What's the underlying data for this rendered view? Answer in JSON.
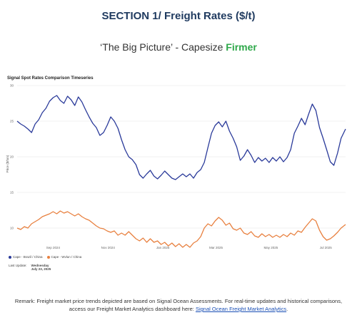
{
  "header": {
    "title_prefix": "SECTION 1/ ",
    "title_main": "Freight Rates ($/t)",
    "subtitle_main": "‘The Big Picture’ - Capesize ",
    "subtitle_status": "Firmer"
  },
  "legend": {
    "series1": "Cape - Brazil / China",
    "series2": "Cape - Wvlun / China"
  },
  "last_update": {
    "label": "Last Update:",
    "day": "Wednesday",
    "date": "July 23, 2025"
  },
  "remark": {
    "text": "Remark: Freight market price trends depicted are based on Signal Ocean Assessments. For real-time updates and historical comparisons, access our Freight Market Analytics dashboard here: ",
    "link": "Signal Ocean Freight Market Analytics",
    "end": "."
  },
  "colors": {
    "series1": "#2a3a9a",
    "series2": "#e8803f",
    "title": "#1f3a5f",
    "status": "#2ea84a"
  },
  "chart_data": {
    "type": "line",
    "title": "Signal Spot Rates Comparison Timeseries",
    "ylabel": "Price ($/ton)",
    "xlabel": "",
    "ylim": [
      8,
      30
    ],
    "yticks": [
      10,
      15,
      20,
      25,
      30
    ],
    "xlim": [
      "2024-07-23",
      "2025-07-23"
    ],
    "xticks": [
      {
        "date": "2024-09-01",
        "label": "Sep 2024"
      },
      {
        "date": "2024-11-01",
        "label": "Nov 2024"
      },
      {
        "date": "2025-01-01",
        "label": "Jan 2025"
      },
      {
        "date": "2025-03-01",
        "label": "Mar 2025"
      },
      {
        "date": "2025-05-01",
        "label": "May 2025"
      },
      {
        "date": "2025-07-01",
        "label": "Jul 2025"
      }
    ],
    "grid": true,
    "series": [
      {
        "name": "Cape - Brazil / China",
        "points": [
          [
            "2024-07-23",
            25.0
          ],
          [
            "2024-07-27",
            24.6
          ],
          [
            "2024-07-31",
            24.3
          ],
          [
            "2024-08-04",
            23.9
          ],
          [
            "2024-08-08",
            23.4
          ],
          [
            "2024-08-12",
            24.6
          ],
          [
            "2024-08-16",
            25.2
          ],
          [
            "2024-08-20",
            26.2
          ],
          [
            "2024-08-24",
            26.8
          ],
          [
            "2024-08-28",
            27.8
          ],
          [
            "2024-09-01",
            28.3
          ],
          [
            "2024-09-05",
            28.6
          ],
          [
            "2024-09-09",
            27.9
          ],
          [
            "2024-09-13",
            27.5
          ],
          [
            "2024-09-17",
            28.5
          ],
          [
            "2024-09-21",
            28.0
          ],
          [
            "2024-09-25",
            27.2
          ],
          [
            "2024-09-29",
            28.4
          ],
          [
            "2024-10-03",
            27.7
          ],
          [
            "2024-10-07",
            26.6
          ],
          [
            "2024-10-11",
            25.6
          ],
          [
            "2024-10-15",
            24.7
          ],
          [
            "2024-10-19",
            24.1
          ],
          [
            "2024-10-23",
            23.0
          ],
          [
            "2024-10-27",
            23.4
          ],
          [
            "2024-10-31",
            24.4
          ],
          [
            "2024-11-04",
            25.6
          ],
          [
            "2024-11-08",
            25.0
          ],
          [
            "2024-11-12",
            24.0
          ],
          [
            "2024-11-16",
            22.4
          ],
          [
            "2024-11-20",
            21.0
          ],
          [
            "2024-11-24",
            20.0
          ],
          [
            "2024-11-28",
            19.6
          ],
          [
            "2024-12-02",
            18.9
          ],
          [
            "2024-12-06",
            17.5
          ],
          [
            "2024-12-10",
            17.0
          ],
          [
            "2024-12-14",
            17.6
          ],
          [
            "2024-12-18",
            18.1
          ],
          [
            "2024-12-22",
            17.3
          ],
          [
            "2024-12-26",
            16.9
          ],
          [
            "2024-12-30",
            17.4
          ],
          [
            "2025-01-03",
            18.0
          ],
          [
            "2025-01-07",
            17.5
          ],
          [
            "2025-01-11",
            17.0
          ],
          [
            "2025-01-15",
            16.8
          ],
          [
            "2025-01-19",
            17.2
          ],
          [
            "2025-01-23",
            17.6
          ],
          [
            "2025-01-27",
            17.2
          ],
          [
            "2025-01-31",
            17.6
          ],
          [
            "2025-02-04",
            17.0
          ],
          [
            "2025-02-08",
            17.8
          ],
          [
            "2025-02-12",
            18.2
          ],
          [
            "2025-02-16",
            19.2
          ],
          [
            "2025-02-20",
            21.3
          ],
          [
            "2025-02-24",
            23.3
          ],
          [
            "2025-02-28",
            24.4
          ],
          [
            "2025-03-04",
            24.9
          ],
          [
            "2025-03-08",
            24.2
          ],
          [
            "2025-03-12",
            25.0
          ],
          [
            "2025-03-16",
            23.6
          ],
          [
            "2025-03-20",
            22.6
          ],
          [
            "2025-03-24",
            21.4
          ],
          [
            "2025-03-28",
            19.5
          ],
          [
            "2025-04-01",
            20.1
          ],
          [
            "2025-04-05",
            21.0
          ],
          [
            "2025-04-09",
            20.2
          ],
          [
            "2025-04-13",
            19.2
          ],
          [
            "2025-04-17",
            19.9
          ],
          [
            "2025-04-21",
            19.4
          ],
          [
            "2025-04-25",
            19.8
          ],
          [
            "2025-04-29",
            19.2
          ],
          [
            "2025-05-03",
            19.9
          ],
          [
            "2025-05-07",
            19.4
          ],
          [
            "2025-05-11",
            20.0
          ],
          [
            "2025-05-15",
            19.3
          ],
          [
            "2025-05-19",
            19.9
          ],
          [
            "2025-05-23",
            21.0
          ],
          [
            "2025-05-27",
            23.3
          ],
          [
            "2025-05-31",
            24.3
          ],
          [
            "2025-06-04",
            25.4
          ],
          [
            "2025-06-08",
            24.5
          ],
          [
            "2025-06-12",
            26.0
          ],
          [
            "2025-06-16",
            27.4
          ],
          [
            "2025-06-20",
            26.5
          ],
          [
            "2025-06-24",
            24.1
          ],
          [
            "2025-06-28",
            22.6
          ],
          [
            "2025-07-02",
            21.0
          ],
          [
            "2025-07-06",
            19.3
          ],
          [
            "2025-07-10",
            18.8
          ],
          [
            "2025-07-14",
            20.5
          ],
          [
            "2025-07-18",
            22.6
          ],
          [
            "2025-07-23",
            23.9
          ]
        ]
      },
      {
        "name": "Cape - Wvlun / China",
        "points": [
          [
            "2024-07-23",
            10.0
          ],
          [
            "2024-07-27",
            9.8
          ],
          [
            "2024-07-31",
            10.2
          ],
          [
            "2024-08-04",
            10.0
          ],
          [
            "2024-08-08",
            10.6
          ],
          [
            "2024-08-12",
            10.9
          ],
          [
            "2024-08-16",
            11.2
          ],
          [
            "2024-08-20",
            11.6
          ],
          [
            "2024-08-24",
            11.8
          ],
          [
            "2024-08-28",
            12.0
          ],
          [
            "2024-09-01",
            12.3
          ],
          [
            "2024-09-05",
            12.0
          ],
          [
            "2024-09-09",
            12.4
          ],
          [
            "2024-09-13",
            12.1
          ],
          [
            "2024-09-17",
            12.3
          ],
          [
            "2024-09-21",
            12.0
          ],
          [
            "2024-09-25",
            11.7
          ],
          [
            "2024-09-29",
            12.0
          ],
          [
            "2024-10-03",
            11.6
          ],
          [
            "2024-10-07",
            11.3
          ],
          [
            "2024-10-11",
            11.1
          ],
          [
            "2024-10-15",
            10.7
          ],
          [
            "2024-10-19",
            10.3
          ],
          [
            "2024-10-23",
            10.0
          ],
          [
            "2024-10-27",
            9.9
          ],
          [
            "2024-10-31",
            9.6
          ],
          [
            "2024-11-04",
            9.4
          ],
          [
            "2024-11-08",
            9.6
          ],
          [
            "2024-11-12",
            9.0
          ],
          [
            "2024-11-16",
            9.3
          ],
          [
            "2024-11-20",
            9.0
          ],
          [
            "2024-11-24",
            9.5
          ],
          [
            "2024-11-28",
            9.0
          ],
          [
            "2024-12-02",
            8.5
          ],
          [
            "2024-12-06",
            8.2
          ],
          [
            "2024-12-10",
            8.6
          ],
          [
            "2024-12-14",
            8.0
          ],
          [
            "2024-12-18",
            8.5
          ],
          [
            "2024-12-22",
            8.0
          ],
          [
            "2024-12-26",
            8.2
          ],
          [
            "2024-12-30",
            7.7
          ],
          [
            "2025-01-03",
            8.0
          ],
          [
            "2025-01-07",
            7.5
          ],
          [
            "2025-01-11",
            7.9
          ],
          [
            "2025-01-15",
            7.4
          ],
          [
            "2025-01-19",
            7.8
          ],
          [
            "2025-01-23",
            7.3
          ],
          [
            "2025-01-27",
            7.7
          ],
          [
            "2025-01-31",
            7.3
          ],
          [
            "2025-02-04",
            7.9
          ],
          [
            "2025-02-08",
            8.2
          ],
          [
            "2025-02-12",
            8.8
          ],
          [
            "2025-02-16",
            10.0
          ],
          [
            "2025-02-20",
            10.6
          ],
          [
            "2025-02-24",
            10.3
          ],
          [
            "2025-02-28",
            11.0
          ],
          [
            "2025-03-04",
            11.5
          ],
          [
            "2025-03-08",
            11.1
          ],
          [
            "2025-03-12",
            10.4
          ],
          [
            "2025-03-16",
            10.7
          ],
          [
            "2025-03-20",
            9.9
          ],
          [
            "2025-03-24",
            9.7
          ],
          [
            "2025-03-28",
            10.0
          ],
          [
            "2025-04-01",
            9.3
          ],
          [
            "2025-04-05",
            9.1
          ],
          [
            "2025-04-09",
            9.5
          ],
          [
            "2025-04-13",
            8.9
          ],
          [
            "2025-04-17",
            8.7
          ],
          [
            "2025-04-21",
            9.2
          ],
          [
            "2025-04-25",
            8.8
          ],
          [
            "2025-04-29",
            9.1
          ],
          [
            "2025-05-03",
            8.7
          ],
          [
            "2025-05-07",
            9.0
          ],
          [
            "2025-05-11",
            8.7
          ],
          [
            "2025-05-15",
            9.1
          ],
          [
            "2025-05-19",
            8.8
          ],
          [
            "2025-05-23",
            9.3
          ],
          [
            "2025-05-27",
            9.0
          ],
          [
            "2025-05-31",
            9.6
          ],
          [
            "2025-06-04",
            9.4
          ],
          [
            "2025-06-08",
            10.1
          ],
          [
            "2025-06-12",
            10.7
          ],
          [
            "2025-06-16",
            11.3
          ],
          [
            "2025-06-20",
            11.0
          ],
          [
            "2025-06-24",
            9.7
          ],
          [
            "2025-06-28",
            8.8
          ],
          [
            "2025-07-02",
            8.3
          ],
          [
            "2025-07-06",
            8.5
          ],
          [
            "2025-07-10",
            8.9
          ],
          [
            "2025-07-14",
            9.4
          ],
          [
            "2025-07-18",
            10.0
          ],
          [
            "2025-07-23",
            10.5
          ]
        ]
      }
    ]
  }
}
